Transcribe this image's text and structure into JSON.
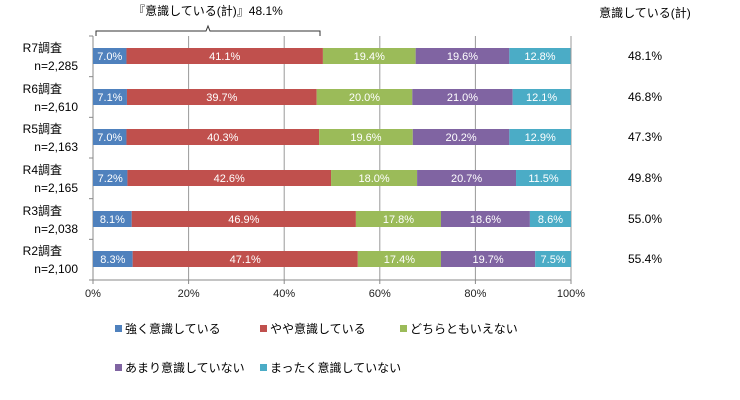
{
  "chart_data": {
    "type": "bar",
    "orientation": "horizontal",
    "stacked": true,
    "categories": [
      [
        "R7調査",
        "n=2,285"
      ],
      [
        "R6調査",
        "n=2,610"
      ],
      [
        "R5調査",
        "n=2,163"
      ],
      [
        "R4調査",
        "n=2,165"
      ],
      [
        "R3調査",
        "n=2,038"
      ],
      [
        "R2調査",
        "n=2,100"
      ]
    ],
    "series": [
      {
        "name": "強く意識している",
        "color": "#4f81bd",
        "values": [
          7.0,
          7.1,
          7.0,
          7.2,
          8.1,
          8.3
        ]
      },
      {
        "name": "やや意識している",
        "color": "#c0504d",
        "values": [
          41.1,
          39.7,
          40.3,
          42.6,
          46.9,
          47.1
        ]
      },
      {
        "name": "どちらともいえない",
        "color": "#9bbb59",
        "values": [
          19.4,
          20.0,
          19.6,
          18.0,
          17.8,
          17.4
        ]
      },
      {
        "name": "あまり意識していない",
        "color": "#8064a2",
        "values": [
          19.6,
          21.0,
          20.2,
          20.7,
          18.6,
          19.7
        ]
      },
      {
        "name": "まったく意識していない",
        "color": "#4bacc6",
        "values": [
          12.8,
          12.1,
          12.9,
          11.5,
          8.6,
          7.5
        ]
      }
    ],
    "xlim": [
      0,
      100
    ],
    "xticks": [
      "0%",
      "20%",
      "40%",
      "60%",
      "80%",
      "100%"
    ],
    "grid": true,
    "legend": "bottom",
    "annotation": "『意識している(計)』48.1%",
    "side_header": "意識している(計)",
    "side_values": [
      "48.1%",
      "46.8%",
      "47.3%",
      "49.8%",
      "55.0%",
      "55.4%"
    ]
  }
}
